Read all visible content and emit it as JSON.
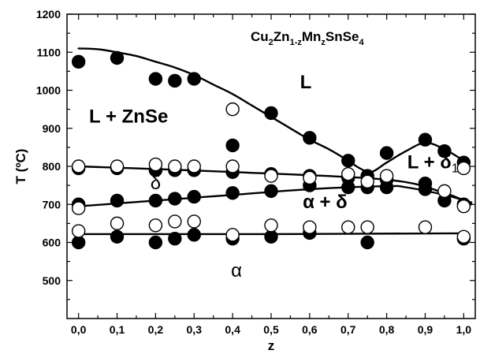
{
  "chart_data": {
    "type": "scatter",
    "title": "",
    "xlabel": "z",
    "ylabel": "T (ºC)",
    "xlim": [
      -0.03,
      1.03
    ],
    "ylim": [
      400,
      1200
    ],
    "grid": false,
    "x_ticks": [
      "0,0",
      "0,1",
      "0,2",
      "0,3",
      "0,4",
      "0,5",
      "0,6",
      "0,7",
      "0,8",
      "0,9",
      "1,0"
    ],
    "y_ticks": [
      "500",
      "600",
      "700",
      "800",
      "900",
      "1000",
      "1100",
      "1200"
    ],
    "formula": {
      "segments": [
        {
          "text": "Cu",
          "sub": false
        },
        {
          "text": "2",
          "sub": true
        },
        {
          "text": "Zn",
          "sub": false
        },
        {
          "text": "1-z",
          "sub": true
        },
        {
          "text": "Mn",
          "sub": false
        },
        {
          "text": "z",
          "sub": true
        },
        {
          "text": "SnSe",
          "sub": false
        },
        {
          "text": "4",
          "sub": true
        }
      ]
    },
    "annotations": [
      {
        "text": "L",
        "x": 0.59,
        "y": 1005
      },
      {
        "text": "L + ZnSe",
        "x": 0.13,
        "y": 915
      },
      {
        "text": "δ",
        "x": 0.2,
        "y": 740
      },
      {
        "text": "L + δ",
        "sub": "1",
        "x": 0.92,
        "y": 795
      },
      {
        "text": "α + δ",
        "x": 0.64,
        "y": 690
      },
      {
        "text": "α",
        "x": 0.41,
        "y": 510
      }
    ],
    "series": [
      {
        "marker": "filled-circle",
        "points": [
          [
            0.0,
            1075
          ],
          [
            0.1,
            1085
          ],
          [
            0.2,
            1030
          ],
          [
            0.25,
            1025
          ],
          [
            0.3,
            1030
          ],
          [
            0.5,
            940
          ],
          [
            0.6,
            875
          ],
          [
            0.7,
            815
          ],
          [
            0.8,
            835
          ],
          [
            0.9,
            870
          ],
          [
            0.95,
            840
          ],
          [
            1.0,
            810
          ],
          [
            0.4,
            855
          ],
          [
            0.0,
            795
          ],
          [
            0.1,
            795
          ],
          [
            0.2,
            790
          ],
          [
            0.25,
            790
          ],
          [
            0.3,
            790
          ],
          [
            0.4,
            785
          ],
          [
            0.5,
            780
          ],
          [
            0.6,
            775
          ],
          [
            0.7,
            770
          ],
          [
            0.75,
            775
          ],
          [
            0.8,
            765
          ],
          [
            0.9,
            755
          ],
          [
            1.0,
            700
          ],
          [
            0.0,
            700
          ],
          [
            0.1,
            710
          ],
          [
            0.2,
            710
          ],
          [
            0.25,
            715
          ],
          [
            0.3,
            720
          ],
          [
            0.4,
            730
          ],
          [
            0.5,
            735
          ],
          [
            0.6,
            750
          ],
          [
            0.7,
            745
          ],
          [
            0.75,
            745
          ],
          [
            0.8,
            745
          ],
          [
            0.9,
            740
          ],
          [
            0.95,
            710
          ],
          [
            0.0,
            600
          ],
          [
            0.1,
            615
          ],
          [
            0.2,
            600
          ],
          [
            0.25,
            610
          ],
          [
            0.3,
            620
          ],
          [
            0.4,
            610
          ],
          [
            0.5,
            615
          ],
          [
            0.6,
            625
          ],
          [
            0.75,
            600
          ],
          [
            1.0,
            610
          ]
        ]
      },
      {
        "marker": "open-circle",
        "points": [
          [
            0.4,
            950
          ],
          [
            0.0,
            800
          ],
          [
            0.1,
            800
          ],
          [
            0.2,
            805
          ],
          [
            0.25,
            800
          ],
          [
            0.3,
            800
          ],
          [
            0.4,
            800
          ],
          [
            0.5,
            775
          ],
          [
            0.6,
            770
          ],
          [
            0.7,
            780
          ],
          [
            0.75,
            760
          ],
          [
            0.8,
            775
          ],
          [
            1.0,
            795
          ],
          [
            0.0,
            690
          ],
          [
            0.95,
            735
          ],
          [
            1.0,
            695
          ],
          [
            0.0,
            630
          ],
          [
            0.1,
            650
          ],
          [
            0.2,
            645
          ],
          [
            0.25,
            655
          ],
          [
            0.3,
            655
          ],
          [
            0.4,
            620
          ],
          [
            0.5,
            645
          ],
          [
            0.6,
            640
          ],
          [
            0.7,
            640
          ],
          [
            0.75,
            640
          ],
          [
            0.9,
            640
          ],
          [
            1.0,
            615
          ]
        ]
      }
    ],
    "lines": [
      {
        "name": "liquidus",
        "points": [
          [
            0.0,
            1110
          ],
          [
            0.05,
            1108
          ],
          [
            0.1,
            1100
          ],
          [
            0.15,
            1090
          ],
          [
            0.2,
            1075
          ],
          [
            0.25,
            1060
          ],
          [
            0.3,
            1040
          ],
          [
            0.35,
            1015
          ],
          [
            0.4,
            990
          ],
          [
            0.45,
            960
          ],
          [
            0.5,
            930
          ],
          [
            0.55,
            900
          ],
          [
            0.6,
            870
          ],
          [
            0.65,
            845
          ],
          [
            0.7,
            815
          ],
          [
            0.73,
            795
          ],
          [
            0.76,
            785
          ],
          [
            0.8,
            810
          ],
          [
            0.85,
            840
          ],
          [
            0.9,
            862
          ],
          [
            0.95,
            845
          ],
          [
            1.0,
            815
          ]
        ]
      },
      {
        "name": "upper-solvus",
        "points": [
          [
            0.0,
            800
          ],
          [
            0.4,
            785
          ],
          [
            0.8,
            765
          ],
          [
            0.95,
            730
          ],
          [
            1.02,
            700
          ]
        ]
      },
      {
        "name": "lower-solvus",
        "points": [
          [
            0.0,
            695
          ],
          [
            0.2,
            710
          ],
          [
            0.4,
            725
          ],
          [
            0.6,
            740
          ],
          [
            0.8,
            748
          ],
          [
            0.85,
            745
          ],
          [
            0.95,
            725
          ],
          [
            1.02,
            705
          ]
        ]
      },
      {
        "name": "eutectoid",
        "points": [
          [
            0.0,
            622
          ],
          [
            0.5,
            622
          ],
          [
            1.0,
            624
          ]
        ]
      }
    ]
  }
}
